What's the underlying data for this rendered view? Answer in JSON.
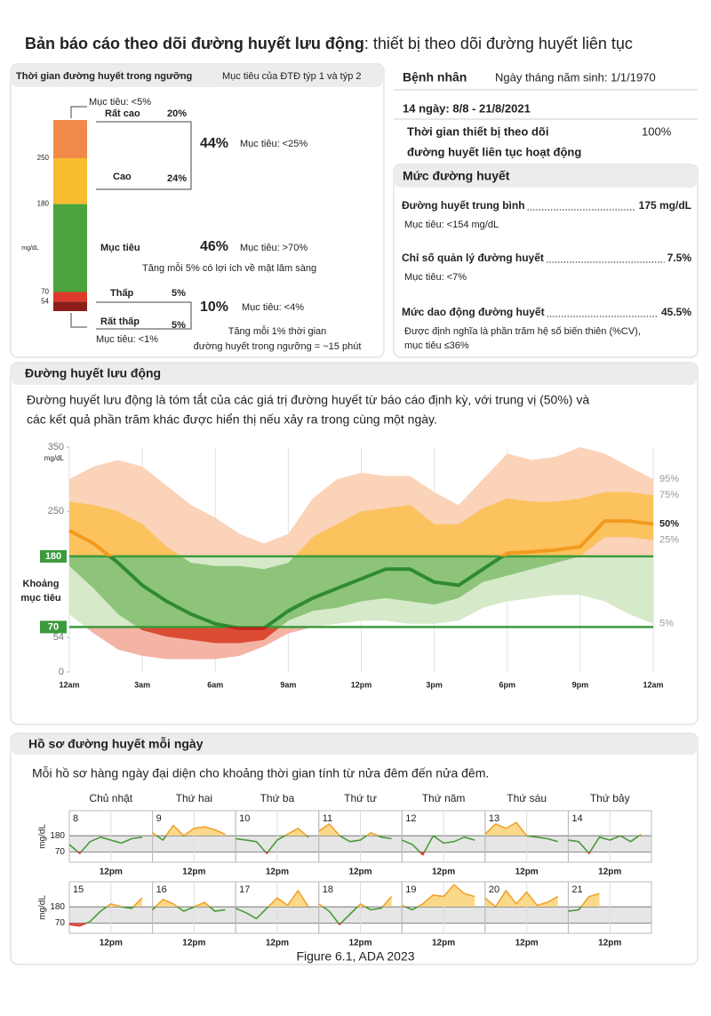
{
  "header": {
    "title_bold": "Bản báo cáo theo dõi đường huyết lưu động",
    "title_rest": ": thiết bị theo dõi đường huyết liên tục"
  },
  "time_in_range": {
    "title": "Thời gian đường huyết trong ngưỡng",
    "target_note": "Mục tiêu của ĐTĐ týp 1 và týp 2",
    "unit": "mg/dL",
    "thresholds": [
      250,
      180,
      70,
      54
    ],
    "segments": [
      {
        "name": "Rất cao",
        "value": 20,
        "value_label": "20%",
        "target": "Mục tiêu: <5%",
        "color": "#f0894a"
      },
      {
        "name": "Cao",
        "value": 24,
        "value_label": "24%",
        "color": "#f8bd2f"
      },
      {
        "name": "Mục tiêu",
        "value": 46,
        "value_label": "46%",
        "target": "Mục tiêu: >70%",
        "note": "Tăng mỗi 5% có lợi ích về mặt lâm sàng",
        "color": "#4aa33c"
      },
      {
        "name": "Thấp",
        "value": 5,
        "value_label": "5%",
        "color": "#de3a2c"
      },
      {
        "name": "Rất thấp",
        "value": 5,
        "value_label": "5%",
        "target": "Mục tiêu: <1%",
        "color": "#8c1f1a"
      }
    ],
    "high_combined": {
      "value_label": "44%",
      "target": "Mục tiêu: <25%"
    },
    "low_combined": {
      "value_label": "10%",
      "target": "Mục tiêu: <4%",
      "note": [
        "Tăng mỗi 1% thời gian",
        "đường huyết trong ngưỡng = ~15 phút"
      ]
    }
  },
  "patient": {
    "label": "Bệnh nhân",
    "dob": "Ngày tháng năm sinh: 1/1/1970",
    "period": "14 ngày: 8/8 - 21/8/2021",
    "cgm_active_label": [
      "Thời gian thiết bị theo dõi",
      "đường huyết liên tục hoạt động"
    ],
    "cgm_active_value": "100%"
  },
  "glucose_metrics": {
    "title": "Mức đường huyết",
    "items": [
      {
        "label": "Đường huyết trung bình",
        "value": "175 mg/dL",
        "target": [
          "Mục tiêu: <154 mg/dL"
        ]
      },
      {
        "label": "Chỉ số quản lý đường huyết",
        "value": "7.5%",
        "target": [
          "Mục tiêu: <7%"
        ]
      },
      {
        "label": "Mức dao động đường huyết",
        "value": "45.5%",
        "target": [
          "Được định nghĩa là phần trăm hệ số biến thiên (%CV),",
          "mục tiêu ≤36%"
        ]
      }
    ]
  },
  "agp": {
    "title": "Đường huyết lưu động",
    "description": [
      "Đường huyết lưu động là tóm tắt của các giá trị đường huyết từ báo cáo định kỳ, với trung vị (50%) và",
      "các kết quả phần trăm khác được hiển thị nếu xảy ra trong cùng một ngày."
    ],
    "y_unit": "mg/dL",
    "target_range_label": [
      "Khoảng",
      "mục tiêu"
    ],
    "ylim": [
      0,
      350
    ],
    "yticks": [
      0,
      54,
      70,
      180,
      250,
      350
    ],
    "target_range": [
      70,
      180
    ],
    "xlim": [
      0,
      24
    ],
    "xticks": [
      {
        "value": 0,
        "label": "12am"
      },
      {
        "value": 3,
        "label": "3am"
      },
      {
        "value": 6,
        "label": "6am"
      },
      {
        "value": 9,
        "label": "9am"
      },
      {
        "value": 12,
        "label": "12pm"
      },
      {
        "value": 15,
        "label": "3pm"
      },
      {
        "value": 18,
        "label": "6pm"
      },
      {
        "value": 21,
        "label": "9pm"
      },
      {
        "value": 24,
        "label": "12am"
      }
    ],
    "zone_colors": {
      "outer": [
        "#fbd3b8",
        "#d6e9c9",
        "#f3b4a4"
      ],
      "inner": [
        "#fbc25e",
        "#8dc47a",
        "#dc4b34"
      ],
      "median": [
        "#f29a1e",
        "#2f8a32",
        "#c0231a"
      ]
    },
    "x": [
      0,
      1,
      2,
      3,
      4,
      5,
      6,
      7,
      8,
      9,
      10,
      11,
      12,
      13,
      14,
      15,
      16,
      17,
      18,
      19,
      20,
      21,
      22,
      23,
      24
    ],
    "series": [
      {
        "name": "5%",
        "color": "#999999",
        "values": [
          90,
          60,
          35,
          25,
          20,
          20,
          20,
          25,
          40,
          60,
          70,
          75,
          80,
          80,
          75,
          75,
          80,
          100,
          110,
          115,
          120,
          120,
          110,
          90,
          75
        ]
      },
      {
        "name": "25%",
        "color": "#999999",
        "values": [
          165,
          130,
          90,
          65,
          55,
          50,
          45,
          45,
          50,
          80,
          95,
          100,
          110,
          115,
          110,
          105,
          115,
          140,
          150,
          160,
          170,
          180,
          210,
          210,
          205
        ]
      },
      {
        "name": "50%",
        "color": "#222222",
        "values": [
          220,
          200,
          170,
          135,
          110,
          90,
          75,
          68,
          68,
          95,
          115,
          130,
          145,
          160,
          160,
          140,
          135,
          160,
          185,
          187,
          190,
          195,
          235,
          235,
          230
        ]
      },
      {
        "name": "75%",
        "color": "#999999",
        "values": [
          265,
          260,
          250,
          230,
          195,
          170,
          165,
          165,
          160,
          170,
          210,
          230,
          250,
          255,
          260,
          230,
          230,
          255,
          270,
          265,
          265,
          270,
          280,
          280,
          275
        ]
      },
      {
        "name": "95%",
        "color": "#999999",
        "values": [
          300,
          320,
          330,
          320,
          290,
          260,
          240,
          215,
          200,
          215,
          270,
          300,
          310,
          305,
          305,
          280,
          260,
          300,
          340,
          330,
          335,
          350,
          340,
          320,
          300
        ]
      }
    ]
  },
  "daily": {
    "title": "Hồ sơ đường huyết mỗi ngày",
    "description": "Mỗi hồ sơ hàng ngày đại diện cho khoảng thời gian tính từ nửa đêm đến nửa đêm.",
    "weekdays": [
      "Chủ nhật",
      "Thứ hai",
      "Thứ ba",
      "Thứ tư",
      "Thứ năm",
      "Thứ sáu",
      "Thứ bảy"
    ],
    "y_unit": "mg/dL",
    "ylim": [
      0,
      350
    ],
    "yticks": [
      70,
      180
    ],
    "xlim": [
      0,
      24
    ],
    "xticks": [
      {
        "value": 12,
        "label": "12pm"
      }
    ],
    "x": [
      0,
      3,
      6,
      9,
      12,
      15,
      18,
      21
    ],
    "colors": [
      "#f0a22e",
      "#4a9a3a",
      "#d9382a"
    ],
    "fill_colors": [
      "#fbd98a",
      "#e8604e"
    ],
    "days": [
      {
        "date": "8",
        "values": [
          120,
          60,
          140,
          170,
          150,
          130,
          160,
          170
        ]
      },
      {
        "date": "9",
        "values": [
          200,
          150,
          250,
          180,
          230,
          240,
          220,
          190
        ]
      },
      {
        "date": "10",
        "values": [
          160,
          150,
          140,
          60,
          150,
          190,
          230,
          170
        ]
      },
      {
        "date": "11",
        "values": [
          210,
          260,
          180,
          140,
          150,
          200,
          170,
          160
        ]
      },
      {
        "date": "12",
        "values": [
          150,
          120,
          50,
          180,
          130,
          140,
          170,
          150
        ]
      },
      {
        "date": "13",
        "values": [
          190,
          260,
          230,
          270,
          180,
          170,
          160,
          140
        ]
      },
      {
        "date": "14",
        "values": [
          150,
          140,
          60,
          170,
          150,
          180,
          140,
          190
        ]
      },
      {
        "date": "15",
        "values": [
          60,
          50,
          80,
          150,
          200,
          180,
          170,
          240
        ]
      },
      {
        "date": "16",
        "values": [
          160,
          230,
          200,
          150,
          180,
          210,
          150,
          160
        ]
      },
      {
        "date": "17",
        "values": [
          170,
          140,
          100,
          170,
          240,
          190,
          290,
          180
        ]
      },
      {
        "date": "18",
        "values": [
          200,
          150,
          60,
          130,
          200,
          160,
          170,
          250
        ]
      },
      {
        "date": "19",
        "values": [
          190,
          160,
          200,
          260,
          250,
          330,
          270,
          250
        ]
      },
      {
        "date": "20",
        "values": [
          240,
          180,
          290,
          200,
          280,
          190,
          210,
          250
        ]
      },
      {
        "date": "21",
        "values": [
          150,
          160,
          250,
          270,
          null,
          null,
          null,
          null
        ]
      }
    ]
  },
  "caption": "Figure 6.1, ADA 2023"
}
